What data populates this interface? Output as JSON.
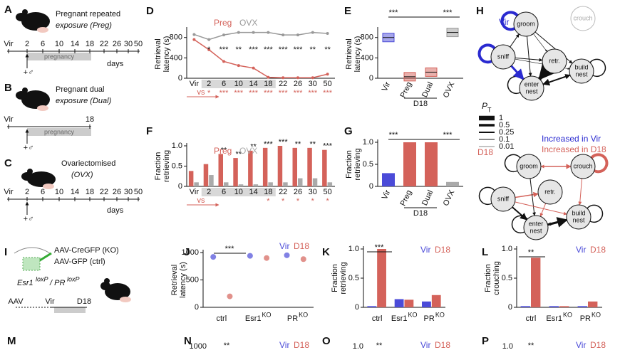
{
  "schematics": {
    "A": {
      "label": "A",
      "title": [
        "Pregnant repeated",
        "exposure (Preg)"
      ],
      "timeline": [
        "Vir",
        "2",
        "6",
        "10",
        "14",
        "18",
        "22",
        "26",
        "30",
        "50"
      ],
      "unit": "days",
      "period": "pregnancy",
      "male": "+♂"
    },
    "B": {
      "label": "B",
      "title": [
        "Pregnant dual",
        "exposure (Dual)"
      ],
      "timeline": [
        "Vir",
        "18"
      ],
      "period": "pregnancy",
      "male": "+♂"
    },
    "C": {
      "label": "C",
      "title": [
        "Ovariectomised",
        "(OVX)"
      ],
      "timeline": [
        "Vir",
        "2",
        "6",
        "10",
        "14",
        "18",
        "22",
        "26",
        "30",
        "50"
      ],
      "unit": "days",
      "male": "+♂"
    },
    "I": {
      "label": "I",
      "vectors": [
        "AAV-CreGFP (KO)",
        "AAV-GFP (ctrl)"
      ],
      "genotype": [
        "Esr1",
        "loxP",
        "/ PR",
        "loxP"
      ],
      "timeline": [
        "AAV",
        "Vir",
        "D18"
      ]
    }
  },
  "chart_data": [
    {
      "label": "D",
      "type": "line",
      "ylabel": [
        "Retrieval",
        "latency (s)"
      ],
      "categories": [
        "Vir",
        "2",
        "6",
        "10",
        "14",
        "18",
        "22",
        "26",
        "30",
        "50"
      ],
      "series": [
        {
          "name": "Preg",
          "color": "#d4625a",
          "values": [
            760,
            560,
            330,
            250,
            200,
            20,
            10,
            10,
            10,
            80
          ]
        },
        {
          "name": "OVX",
          "color": "#999999",
          "values": [
            860,
            760,
            850,
            900,
            900,
            900,
            850,
            850,
            900,
            880
          ]
        }
      ],
      "ylim": [
        0,
        950
      ],
      "yticks": [
        0,
        400,
        800
      ],
      "stars": [
        null,
        "*",
        "***",
        "**",
        "***",
        "***",
        "***",
        "***",
        "**",
        "**"
      ],
      "stars_bottom": [
        null,
        "*",
        "***",
        "***",
        "***",
        "***",
        "***",
        "***",
        "***",
        "***"
      ],
      "xlabel": "vs"
    },
    {
      "label": "E",
      "type": "box",
      "ylabel": [
        "Retrieval",
        "latency (s)"
      ],
      "categories": [
        "Vir",
        "Preg",
        "Dual",
        "OVX"
      ],
      "values": [
        800,
        30,
        120,
        900
      ],
      "colors": [
        "#4b4bd8",
        "#d4625a",
        "#d4625a",
        "#999999"
      ],
      "ylim": [
        0,
        950
      ],
      "yticks": [
        0,
        400,
        800
      ],
      "group_label": "D18",
      "annotations": [
        "***",
        "***"
      ]
    },
    {
      "label": "F",
      "type": "bar",
      "ylabel": [
        "Fraction",
        "retrieving"
      ],
      "categories": [
        "Vir",
        "2",
        "6",
        "10",
        "14",
        "18",
        "22",
        "26",
        "30",
        "50"
      ],
      "series": [
        {
          "name": "Preg",
          "color": "#d4625a",
          "values": [
            0.38,
            0.55,
            0.8,
            0.7,
            0.88,
            0.95,
            1.0,
            0.95,
            0.95,
            0.9
          ]
        },
        {
          "name": "OVX",
          "color": "#aaaaaa",
          "values": [
            0.1,
            0.28,
            0.1,
            0.05,
            0.05,
            0.1,
            0.1,
            0.2,
            0.2,
            0.1
          ]
        }
      ],
      "ylim": [
        0,
        1
      ],
      "yticks": [
        0,
        0.5,
        {
          "value": 1,
          "label": "1.0"
        }
      ],
      "stars": [
        null,
        null,
        "**",
        "**",
        "**",
        "***",
        "***",
        "**",
        "**",
        "***"
      ],
      "stars_bottom": [
        null,
        null,
        null,
        null,
        null,
        "*",
        "*",
        "*",
        "*",
        "*"
      ],
      "xlabel": "vs"
    },
    {
      "label": "G",
      "type": "bar",
      "ylabel": [
        "Fraction",
        "retrieving"
      ],
      "categories": [
        "Vir",
        "Preg",
        "Dual",
        "OVX"
      ],
      "values": [
        0.3,
        1.0,
        1.0,
        0.1
      ],
      "colors": [
        "#4b4bd8",
        "#d4625a",
        "#d4625a",
        "#aaaaaa"
      ],
      "ylim": [
        0,
        1
      ],
      "yticks": [
        0,
        0.5,
        {
          "value": 1,
          "label": "1.0"
        }
      ],
      "group_label": "D18",
      "annotations": [
        "***",
        "***"
      ]
    },
    {
      "label": "J",
      "type": "strip",
      "ylabel": [
        "Retrieval",
        "latency (s)"
      ],
      "categories": [
        "ctrl",
        "Esr1",
        "PR"
      ],
      "superscripts": [
        null,
        "KO",
        "KO"
      ],
      "series": [
        {
          "name": "Vir",
          "color": "#4b4bd8",
          "values": [
            920,
            940,
            950
          ]
        },
        {
          "name": "D18",
          "color": "#d4625a",
          "values": [
            200,
            900,
            880
          ]
        }
      ],
      "ylim": [
        0,
        1000
      ],
      "yticks": [
        0,
        500,
        1000
      ],
      "annotations": [
        "***"
      ]
    },
    {
      "label": "K",
      "type": "bar",
      "ylabel": [
        "Fraction",
        "retrieving"
      ],
      "categories": [
        "ctrl",
        "Esr1",
        "PR"
      ],
      "superscripts": [
        null,
        "KO",
        "KO"
      ],
      "series": [
        {
          "name": "Vir",
          "color": "#4b4bd8",
          "values": [
            0.02,
            0.14,
            0.1
          ]
        },
        {
          "name": "D18",
          "color": "#d4625a",
          "values": [
            1.0,
            0.13,
            0.21
          ]
        }
      ],
      "ylim": [
        0,
        1
      ],
      "yticks": [
        0,
        0.5,
        {
          "value": 1,
          "label": "1.0"
        }
      ],
      "annotations": [
        "***"
      ]
    },
    {
      "label": "L",
      "type": "bar",
      "ylabel": [
        "Fraction",
        "crouching"
      ],
      "categories": [
        "ctrl",
        "Esr1",
        "PR"
      ],
      "superscripts": [
        null,
        "KO",
        "KO"
      ],
      "series": [
        {
          "name": "Vir",
          "color": "#4b4bd8",
          "values": [
            0.02,
            0.02,
            0.02
          ]
        },
        {
          "name": "D18",
          "color": "#d4625a",
          "values": [
            0.85,
            0.02,
            0.1
          ]
        }
      ],
      "ylim": [
        0,
        1
      ],
      "yticks": [
        0,
        0.5,
        {
          "value": 1,
          "label": "1.0"
        }
      ],
      "annotations": [
        "**"
      ]
    }
  ],
  "diagram": {
    "label": "H",
    "legend_title": "P",
    "legend_sub": "T",
    "legend_values": [
      1,
      0.5,
      0.25,
      0.1,
      0.01
    ],
    "legend_notes": [
      "Increased in Vir",
      "Increased in D18"
    ],
    "networks": [
      {
        "name": "Vir",
        "nodes": [
          "groom",
          "crouch",
          "sniff",
          "retr.",
          [
            "build",
            "nest"
          ],
          [
            "enter",
            "nest"
          ]
        ]
      },
      {
        "name": "D18",
        "nodes": [
          "groom",
          "crouch",
          "sniff",
          "retr.",
          [
            "build",
            "nest"
          ],
          [
            "enter",
            "nest"
          ]
        ]
      }
    ]
  },
  "bottom": {
    "labels": [
      "M",
      "N",
      "O",
      "P"
    ],
    "legends": [
      [
        "Vir",
        "D18"
      ],
      [
        "Vir",
        "D18"
      ],
      [
        "Vir",
        "D18"
      ]
    ],
    "ticks": [
      "1000",
      "1.0",
      "1.0"
    ],
    "stars": [
      "**",
      "**",
      "**"
    ]
  }
}
